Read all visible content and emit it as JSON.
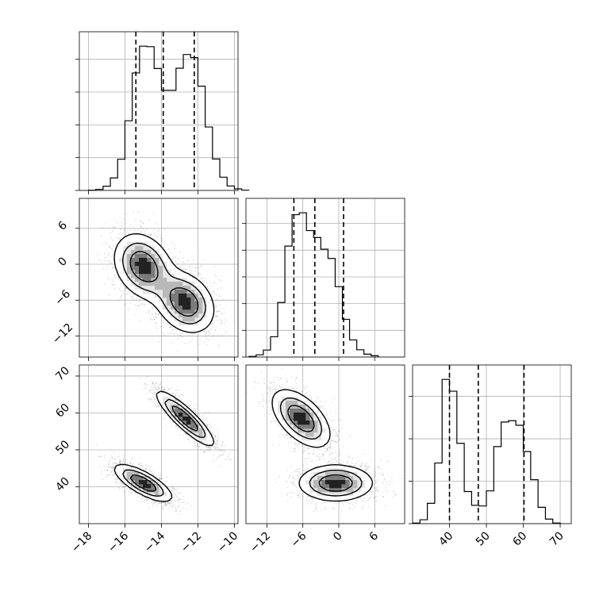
{
  "chart_data": [
    {
      "type": "histogram",
      "parameter": "x",
      "panel": "hist-x",
      "xlim": [
        -18.5,
        -9.8
      ],
      "bins": {
        "start": -18,
        "width": 0.4,
        "counts": [
          1,
          4,
          16,
          48,
          120,
          268,
          452,
          555,
          553,
          469,
          385,
          385,
          470,
          523,
          511,
          401,
          244,
          121,
          51,
          17,
          6,
          1
        ]
      },
      "quantiles": [
        -15.4,
        -13.9,
        -12.2
      ],
      "xticks": [
        -18,
        -16,
        -14,
        -12,
        -10
      ],
      "ytick_count": 4
    },
    {
      "type": "histogram",
      "parameter": "y",
      "panel": "hist-y",
      "xlim": [
        -15.5,
        11
      ],
      "bins": {
        "start": -15,
        "width": 1.2,
        "counts": [
          2,
          7,
          22,
          64,
          172,
          350,
          449,
          455,
          399,
          377,
          340,
          311,
          222,
          119,
          54,
          23,
          9,
          4
        ]
      },
      "quantiles": [
        -7.5,
        -4.0,
        0.8
      ],
      "xticks": [
        -12,
        -6,
        0,
        6
      ],
      "ytick_count": 5
    },
    {
      "type": "histogram",
      "parameter": "z",
      "panel": "hist-z",
      "xlim": [
        30,
        73
      ],
      "bins": {
        "start": 30,
        "width": 2,
        "counts": [
          2,
          12,
          62,
          185,
          440,
          404,
          245,
          98,
          56,
          54,
          100,
          235,
          310,
          314,
          300,
          220,
          134,
          50,
          14,
          2
        ]
      },
      "quantiles": [
        40.0,
        47.8,
        60.2
      ],
      "xticks": [
        40,
        50,
        60,
        70
      ],
      "ytick_count": 3
    },
    {
      "type": "scatter",
      "panel": "x-y",
      "x_param": "x",
      "y_param": "y",
      "xlim": [
        -18.5,
        -9.8
      ],
      "ylim": [
        -15.5,
        11
      ],
      "yticks": [
        -12,
        -6,
        0,
        6
      ],
      "modes": [
        {
          "cx": -15.0,
          "cy": -0.3,
          "sx": 0.85,
          "sy": 2.9,
          "rho": -0.25,
          "weight": 1
        },
        {
          "cx": -12.7,
          "cy": -6.4,
          "sx": 0.85,
          "sy": 2.7,
          "rho": -0.25,
          "weight": 1
        }
      ]
    },
    {
      "type": "scatter",
      "panel": "x-z",
      "x_param": "x",
      "y_param": "z",
      "xlim": [
        -18.5,
        -9.8
      ],
      "ylim": [
        30,
        73
      ],
      "yticks": [
        40,
        50,
        60,
        70
      ],
      "modes": [
        {
          "cx": -15.0,
          "cy": 41.0,
          "sx": 0.85,
          "sy": 2.7,
          "rho": -0.75,
          "weight": 1
        },
        {
          "cx": -12.7,
          "cy": 58.5,
          "sx": 0.85,
          "sy": 4.0,
          "rho": -0.88,
          "weight": 1
        }
      ]
    },
    {
      "type": "scatter",
      "panel": "y-z",
      "x_param": "y",
      "y_param": "z",
      "xlim": [
        -15.5,
        11
      ],
      "ylim": [
        30,
        73
      ],
      "modes": [
        {
          "cx": -6.3,
          "cy": 58.5,
          "sx": 2.6,
          "sy": 4.2,
          "rho": -0.55,
          "weight": 1
        },
        {
          "cx": -0.5,
          "cy": 41.0,
          "sx": 3.3,
          "sy": 2.6,
          "rho": 0.0,
          "weight": 1
        }
      ]
    }
  ]
}
